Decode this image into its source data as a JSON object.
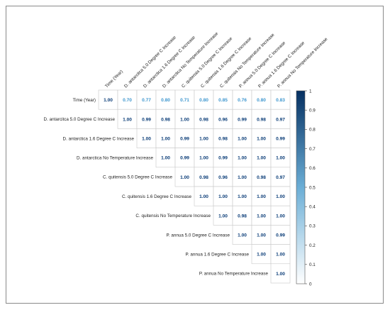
{
  "chart_data": {
    "type": "heatmap",
    "variables": [
      "Time (Year)",
      "D. antarcitca 5.0 Degree C Increase",
      "D. antarctica  1.6 Degree C Increase",
      "D. antarctica  No Temperature Increase",
      "C. quitensis  5.0 Degree C Increase",
      "C. quitensis  1.6 Degree C Increase",
      "C. quitensis No Temperature Increase",
      "P. annua  5.0 Degree C Increase",
      "P. annua  1.6 Degree C Increase",
      "P. annua No Temperature Increase"
    ],
    "matrix": [
      [
        "1.00",
        "0.70",
        "0.77",
        "0.80",
        "0.71",
        "0.80",
        "0.85",
        "0.76",
        "0.80",
        "0.83"
      ],
      [
        null,
        "1.00",
        "0.99",
        "0.98",
        "1.00",
        "0.98",
        "0.96",
        "0.99",
        "0.98",
        "0.97"
      ],
      [
        null,
        null,
        "1.00",
        "1.00",
        "0.99",
        "1.00",
        "0.98",
        "1.00",
        "1.00",
        "0.99"
      ],
      [
        null,
        null,
        null,
        "1.00",
        "0.99",
        "1.00",
        "0.99",
        "1.00",
        "1.00",
        "1.00"
      ],
      [
        null,
        null,
        null,
        null,
        "1.00",
        "0.98",
        "0.96",
        "1.00",
        "0.98",
        "0.97"
      ],
      [
        null,
        null,
        null,
        null,
        null,
        "1.00",
        "1.00",
        "1.00",
        "1.00",
        "1.00"
      ],
      [
        null,
        null,
        null,
        null,
        null,
        null,
        "1.00",
        "0.98",
        "1.00",
        "1.00"
      ],
      [
        null,
        null,
        null,
        null,
        null,
        null,
        null,
        "1.00",
        "1.00",
        "0.99"
      ],
      [
        null,
        null,
        null,
        null,
        null,
        null,
        null,
        null,
        "1.00",
        "1.00"
      ],
      [
        null,
        null,
        null,
        null,
        null,
        null,
        null,
        null,
        null,
        "1.00"
      ]
    ],
    "colorbar": {
      "range": [
        0,
        1
      ],
      "ticks": [
        "1",
        "0.9",
        "0.8",
        "0.7",
        "0.6",
        "0.5",
        "0.4",
        "0.3",
        "0.2",
        "0.1",
        "0"
      ]
    },
    "colors": {
      "high": "#053061",
      "mid": "#6baed6",
      "low": "#ffffff",
      "text_dark": "#0b3d78",
      "text_light": "#3f97cf",
      "grid": "#c8c8c8"
    }
  }
}
